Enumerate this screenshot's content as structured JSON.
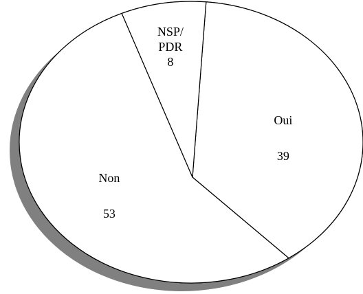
{
  "chart_data": {
    "type": "pie",
    "categories": [
      "Oui",
      "Non",
      "NSP/ PDR"
    ],
    "values": [
      39,
      53,
      8
    ]
  }
}
